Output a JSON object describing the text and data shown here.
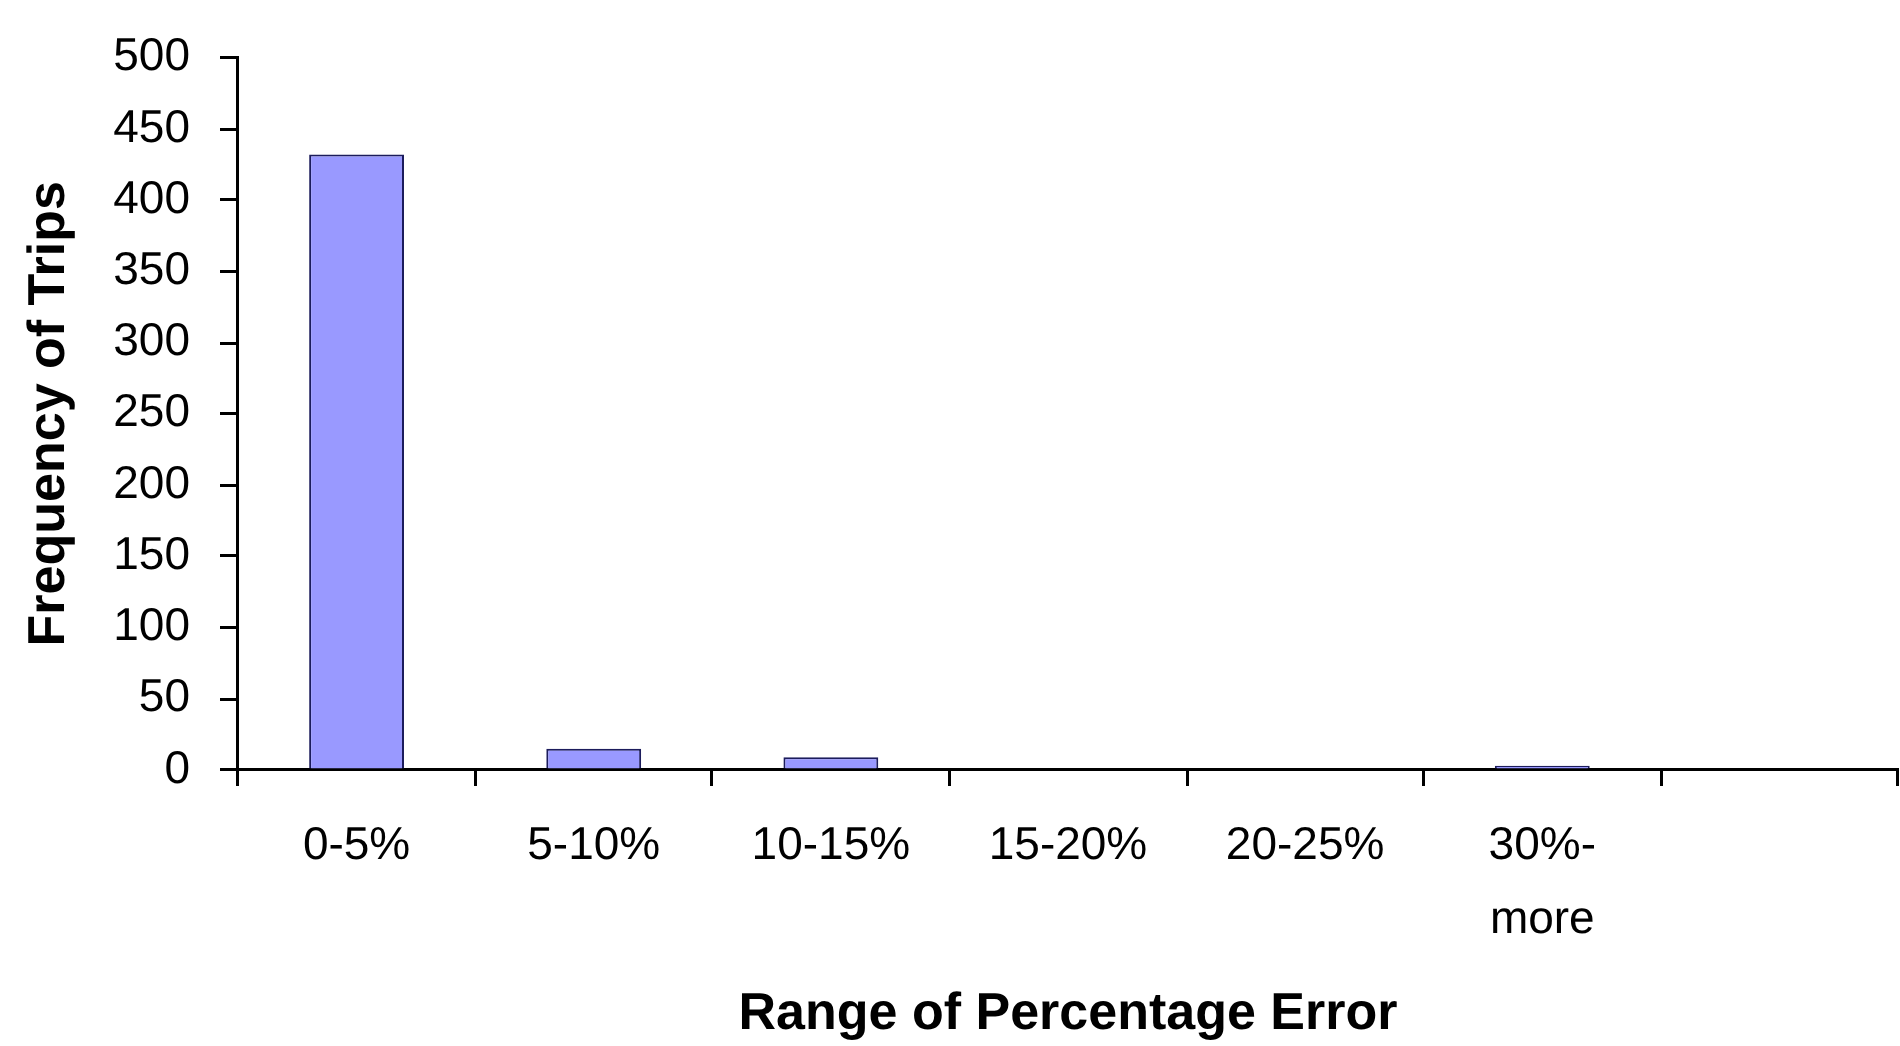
{
  "chart_data": {
    "type": "bar",
    "xlabel": "Range of Percentage Error",
    "ylabel": "Frequency of Trips",
    "categories": [
      "0-5%",
      "5-10%",
      "10-15%",
      "15-20%",
      "20-25%",
      "30%-more",
      null
    ],
    "values": [
      432,
      15,
      9,
      0,
      0,
      3,
      null
    ],
    "color": "#9999ff",
    "ylim": [
      0,
      500
    ],
    "yticks": [
      0,
      50,
      100,
      150,
      200,
      250,
      300,
      350,
      400,
      450,
      500
    ],
    "grid": false,
    "legend": false
  }
}
